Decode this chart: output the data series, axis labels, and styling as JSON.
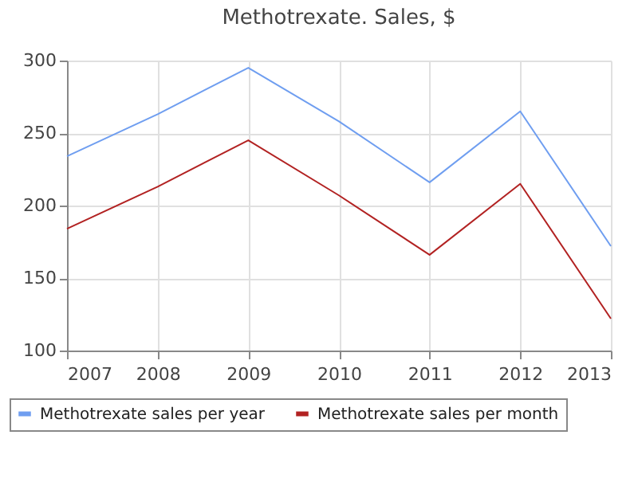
{
  "chart_data": {
    "type": "line",
    "title": "Methotrexate. Sales, $",
    "x": [
      2007,
      2008,
      2009,
      2010,
      2011,
      2012,
      2013
    ],
    "series": [
      {
        "name": "Methotrexate sales per year",
        "color": "#6f9ef0",
        "values": [
          234,
          263,
          295,
          258,
          216,
          265,
          172
        ]
      },
      {
        "name": "Methotrexate sales per month",
        "color": "#b22222",
        "values": [
          184,
          213,
          245,
          207,
          166,
          215,
          122
        ]
      }
    ],
    "xlim": [
      2007,
      2013
    ],
    "xticks": [
      2007,
      2008,
      2009,
      2010,
      2011,
      2012,
      2013
    ],
    "ylim": [
      100,
      300
    ],
    "yticks": [
      100,
      150,
      200,
      250,
      300
    ],
    "grid": true,
    "legend": "bottom",
    "marker": "none",
    "line_style": "solid"
  }
}
